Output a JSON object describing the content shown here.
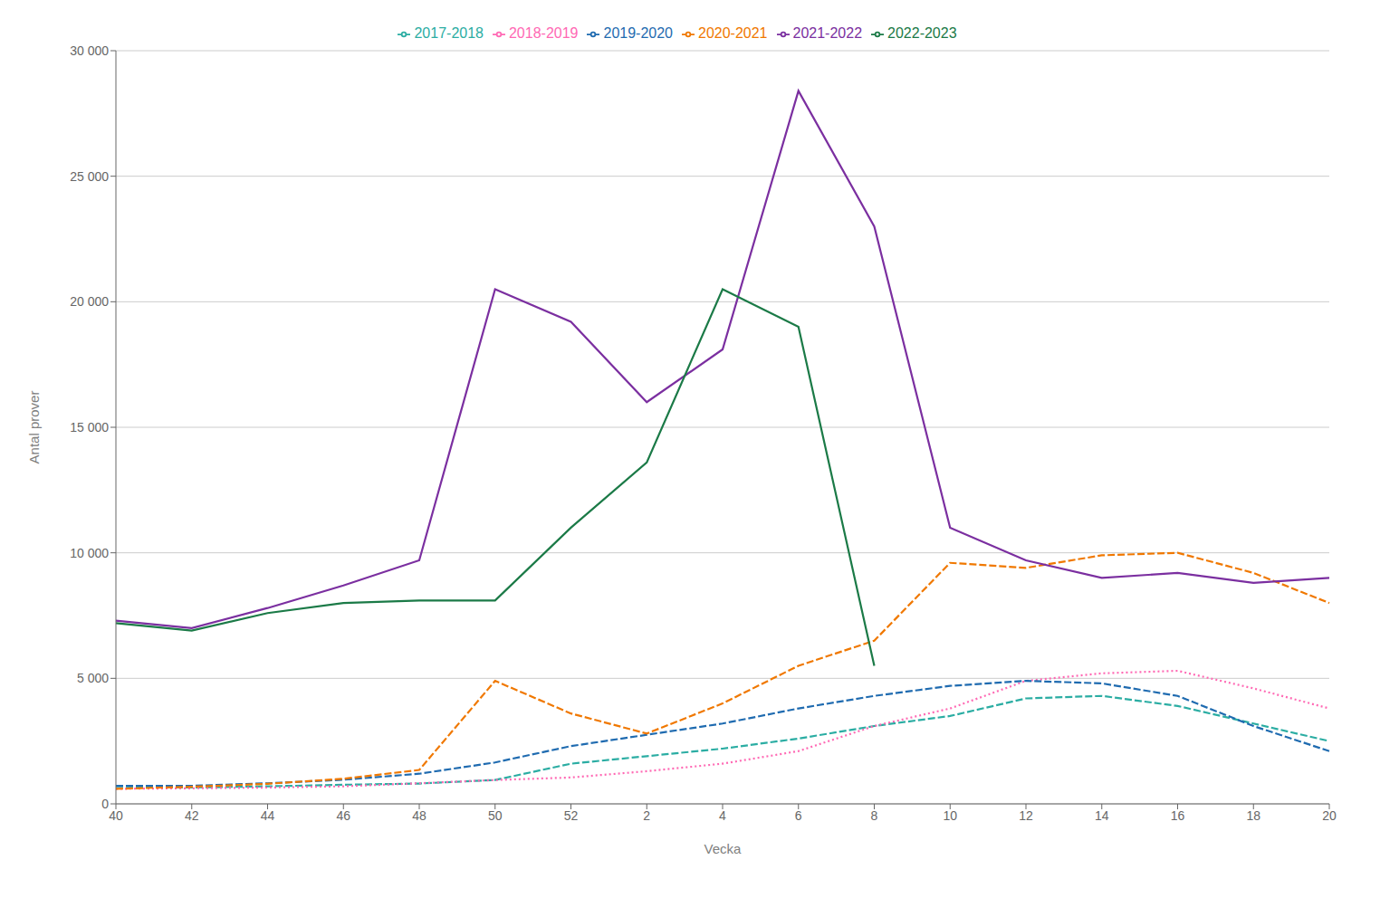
{
  "chart_data": {
    "type": "line",
    "xlabel": "Vecka",
    "ylabel": "Antal prover",
    "categories": [
      "40",
      "42",
      "44",
      "46",
      "48",
      "50",
      "52",
      "2",
      "4",
      "6",
      "8",
      "10",
      "12",
      "14",
      "16",
      "18",
      "20"
    ],
    "series": [
      {
        "name": "2017-2018",
        "color": "#2BADA3",
        "line_style": "dashed",
        "values": [
          700,
          650,
          700,
          760,
          810,
          950,
          1600,
          1900,
          2200,
          2600,
          3100,
          3500,
          4200,
          4300,
          3900,
          3200,
          2500
        ]
      },
      {
        "name": "2018-2019",
        "color": "#FF69B4",
        "line_style": "dotted",
        "values": [
          600,
          620,
          650,
          700,
          820,
          950,
          1050,
          1300,
          1600,
          2100,
          3100,
          3800,
          4900,
          5200,
          5300,
          4600,
          3800
        ]
      },
      {
        "name": "2019-2020",
        "color": "#1F6BB0",
        "line_style": "dashed",
        "values": [
          720,
          720,
          820,
          960,
          1200,
          1650,
          2300,
          2750,
          3200,
          3800,
          4300,
          4700,
          4900,
          4800,
          4300,
          3100,
          2100
        ]
      },
      {
        "name": "2020-2021",
        "color": "#F07800",
        "line_style": "dashed",
        "values": [
          600,
          680,
          800,
          1000,
          1350,
          4900,
          3600,
          2800,
          4000,
          5500,
          6500,
          9600,
          9400,
          9900,
          10000,
          9200,
          8000
        ]
      },
      {
        "name": "2021-2022",
        "color": "#7B2FA0",
        "line_style": "solid",
        "values": [
          7300,
          7000,
          7800,
          8700,
          9700,
          20500,
          19200,
          16000,
          18100,
          28400,
          23000,
          11000,
          9700,
          9000,
          9200,
          8800,
          9000
        ]
      },
      {
        "name": "2022-2023",
        "color": "#1B7A47",
        "line_style": "solid",
        "values": [
          7200,
          6900,
          7600,
          8000,
          8100,
          8100,
          11000,
          13600,
          20500,
          19000,
          5500,
          null,
          null,
          null,
          null,
          null,
          null
        ]
      }
    ],
    "ylim": [
      0,
      30000
    ],
    "yticks": [
      0,
      {
        "value": 5000,
        "label": "5 000"
      },
      {
        "value": 10000,
        "label": "10 000"
      },
      {
        "value": 15000,
        "label": "15 000"
      },
      {
        "value": 20000,
        "label": "20 000"
      },
      {
        "value": 25000,
        "label": "25 000"
      },
      {
        "value": 30000,
        "label": "30 000"
      }
    ],
    "grid": true,
    "legend": "top"
  }
}
